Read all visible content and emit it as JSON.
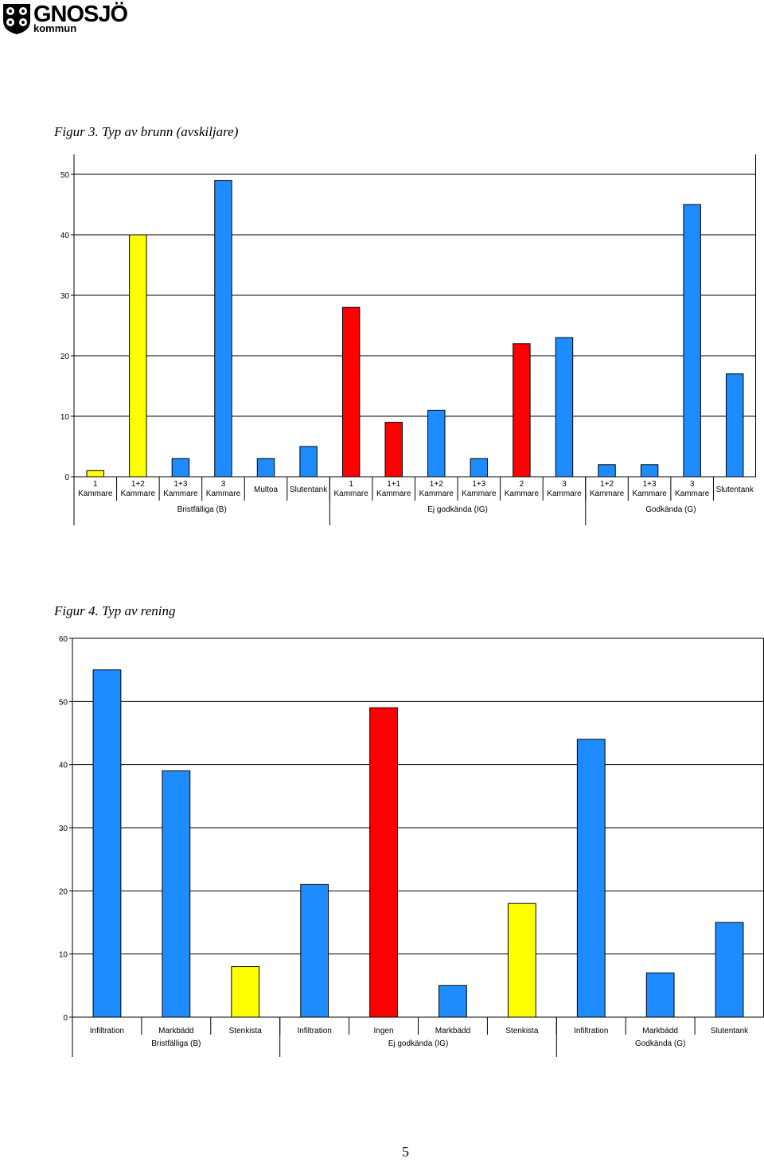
{
  "logo": {
    "name": "GNOSJÖ",
    "sub": "kommun"
  },
  "colors": {
    "blue": "#1E8CFF",
    "yellow": "#FFFF00",
    "red": "#FF0000"
  },
  "chart_data": [
    {
      "caption": "Figur 3. Typ av brunn (avskiljare)",
      "type": "bar",
      "ylim": [
        0,
        50
      ],
      "yticks": [
        0,
        10,
        20,
        30,
        40,
        50
      ],
      "grid": true,
      "categories": [
        [
          "1",
          "Kammare"
        ],
        [
          "1+2",
          "Kammare"
        ],
        [
          "1+3",
          "Kammare"
        ],
        [
          "3",
          "Kammare"
        ],
        [
          "Multoa"
        ],
        [
          "Slutentank"
        ],
        [
          "1",
          "Kammare"
        ],
        [
          "1+1",
          "Kammare"
        ],
        [
          "1+2",
          "Kammare"
        ],
        [
          "1+3",
          "Kammare"
        ],
        [
          "2",
          "Kammare"
        ],
        [
          "3",
          "Kammare"
        ],
        [
          "1+2",
          "Kammare"
        ],
        [
          "1+3",
          "Kammare"
        ],
        [
          "3",
          "Kammare"
        ],
        [
          "Slutentank"
        ]
      ],
      "values": [
        1,
        40,
        3,
        49,
        3,
        5,
        28,
        9,
        11,
        3,
        22,
        23,
        2,
        2,
        45,
        17
      ],
      "bar_colors": [
        "yellow",
        "yellow",
        "blue",
        "blue",
        "blue",
        "blue",
        "red",
        "red",
        "blue",
        "blue",
        "red",
        "blue",
        "blue",
        "blue",
        "blue",
        "blue"
      ],
      "groups": [
        {
          "label": "Bristfälliga (B)",
          "count": 6
        },
        {
          "label": "Ej godkända (IG)",
          "count": 6
        },
        {
          "label": "Godkända (G)",
          "count": 4
        }
      ]
    },
    {
      "caption": "Figur 4. Typ av rening",
      "type": "bar",
      "ylim": [
        0,
        60
      ],
      "yticks": [
        0,
        10,
        20,
        30,
        40,
        50,
        60
      ],
      "grid": true,
      "categories": [
        [
          "Infiltration"
        ],
        [
          "Markbädd"
        ],
        [
          "Stenkista"
        ],
        [
          "Infiltration"
        ],
        [
          "Ingen"
        ],
        [
          "Markbädd"
        ],
        [
          "Stenkista"
        ],
        [
          "Infiltration"
        ],
        [
          "Markbädd"
        ],
        [
          "Slutentank"
        ]
      ],
      "values": [
        55,
        39,
        8,
        21,
        49,
        5,
        18,
        44,
        7,
        15
      ],
      "bar_colors": [
        "blue",
        "blue",
        "yellow",
        "blue",
        "red",
        "blue",
        "yellow",
        "blue",
        "blue",
        "blue"
      ],
      "groups": [
        {
          "label": "Bristfälliga (B)",
          "count": 3
        },
        {
          "label": "Ej godkända (IG)",
          "count": 4
        },
        {
          "label": "Godkända (G)",
          "count": 3
        }
      ]
    }
  ],
  "page_number": "5"
}
